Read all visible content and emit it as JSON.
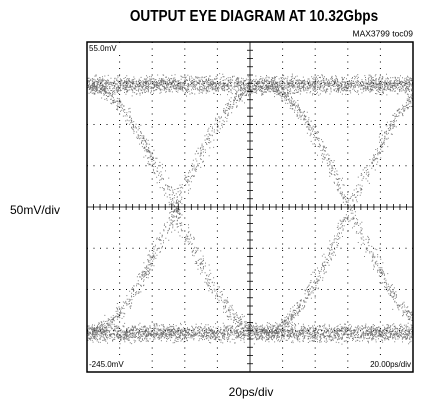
{
  "title": "OUTPUT EYE DIAGRAM AT 10.32Gbps",
  "note": "MAX3799 toc09",
  "y_label": "50mV/div",
  "x_label": "20ps/div",
  "screen": {
    "top_label": "55.0mV",
    "bottom_label": "-245.0mV",
    "timebase_label": "20.00ps/div"
  }
}
